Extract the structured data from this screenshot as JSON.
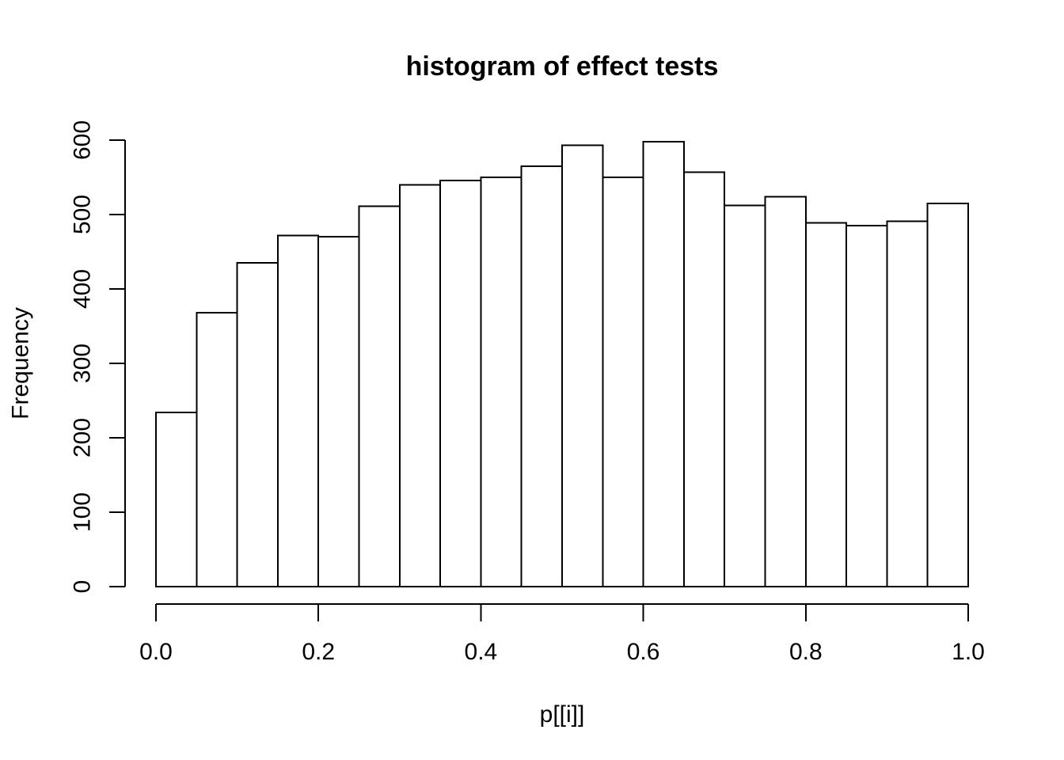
{
  "figure": {
    "background": "#ffffff",
    "ink_color": "#000000"
  },
  "chart_data": {
    "type": "bar",
    "subtype": "histogram",
    "title": "histogram of effect tests",
    "xlabel": "p[[i]]",
    "ylabel": "Frequency",
    "xlim": [
      0.0,
      1.0
    ],
    "ylim": [
      0,
      600
    ],
    "grid": false,
    "legend": "none",
    "bin_width": 0.05,
    "bin_edges": [
      0.0,
      0.05,
      0.1,
      0.15,
      0.2,
      0.25,
      0.3,
      0.35,
      0.4,
      0.45,
      0.5,
      0.55,
      0.6,
      0.65,
      0.7,
      0.75,
      0.8,
      0.85,
      0.9,
      0.95,
      1.0
    ],
    "values": [
      234,
      368,
      435,
      472,
      470,
      511,
      540,
      546,
      550,
      565,
      593,
      550,
      598,
      557,
      512,
      524,
      489,
      485,
      491,
      515
    ],
    "x_tick_labels": [
      "0.0",
      "0.2",
      "0.4",
      "0.6",
      "0.8",
      "1.0"
    ],
    "y_tick_labels": [
      "0",
      "100",
      "200",
      "300",
      "400",
      "500",
      "600"
    ],
    "bar_fill": "#ffffff",
    "bar_stroke": "#000000"
  }
}
